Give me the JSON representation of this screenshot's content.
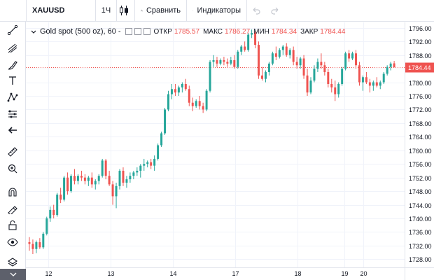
{
  "toolbar": {
    "symbol": "XAUUSD",
    "interval": "1Ч",
    "compare_label": "Сравнить",
    "indicators_label": "Индикаторы"
  },
  "legend": {
    "title": "Gold spot (500 oz), 60",
    "sep": "-",
    "open_label": "ОТКР",
    "open_value": "1785.57",
    "high_label": "МАКС",
    "high_value": "1786.27",
    "low_label": "МИН",
    "low_value": "1784.34",
    "close_label": "ЗАКР",
    "close_value": "1784.44"
  },
  "left_tools": [
    "crosshair-icon",
    "trend-line-icon",
    "pitchfork-icon",
    "brush-icon",
    "text-icon",
    "pattern-icon",
    "prediction-icon",
    "back-arrow-icon",
    "ruler-icon",
    "zoom-in-icon",
    "magnet-icon",
    "lock-drawing-icon",
    "lock-icon",
    "eye-icon",
    "layers-icon"
  ],
  "colors": {
    "up": "#26a69a",
    "down": "#ef5350",
    "grid": "#f0f3fa",
    "price_line": "#ef5350"
  },
  "chart_data": {
    "type": "candlestick",
    "y_ticks": [
      1728,
      1732,
      1736,
      1740,
      1744,
      1748,
      1752,
      1756,
      1760,
      1764,
      1768,
      1772,
      1776,
      1780,
      1784,
      1788,
      1792,
      1796
    ],
    "ylim": [
      1725.6,
      1797.6
    ],
    "x_ticks": [
      "12",
      "13",
      "14",
      "17",
      "18",
      "19",
      "20"
    ],
    "last_price": 1784.44,
    "last_price_label": "1784.44",
    "candles": [
      [
        1733.0,
        1734.5,
        1730.5,
        1732.5
      ],
      [
        1732.5,
        1733.8,
        1729.5,
        1731.0
      ],
      [
        1731.0,
        1733.5,
        1729.8,
        1733.0
      ],
      [
        1733.0,
        1734.2,
        1731.0,
        1731.5
      ],
      [
        1731.5,
        1736.0,
        1731.0,
        1735.5
      ],
      [
        1735.5,
        1740.5,
        1735.0,
        1740.0
      ],
      [
        1740.0,
        1743.5,
        1739.0,
        1742.5
      ],
      [
        1742.5,
        1744.0,
        1740.0,
        1741.0
      ],
      [
        1741.0,
        1747.5,
        1740.5,
        1747.0
      ],
      [
        1747.0,
        1749.0,
        1744.5,
        1745.5
      ],
      [
        1745.5,
        1752.5,
        1745.0,
        1752.0
      ],
      [
        1752.0,
        1753.5,
        1747.0,
        1748.0
      ],
      [
        1748.0,
        1753.0,
        1747.5,
        1752.5
      ],
      [
        1752.5,
        1754.5,
        1750.0,
        1751.0
      ],
      [
        1751.0,
        1753.0,
        1750.0,
        1752.5
      ],
      [
        1752.5,
        1754.0,
        1751.0,
        1752.0
      ],
      [
        1752.0,
        1753.0,
        1750.0,
        1751.0
      ],
      [
        1751.0,
        1752.5,
        1749.5,
        1752.0
      ],
      [
        1752.0,
        1753.5,
        1749.0,
        1750.0
      ],
      [
        1750.0,
        1751.5,
        1748.5,
        1751.0
      ],
      [
        1751.0,
        1753.0,
        1750.0,
        1752.5
      ],
      [
        1752.5,
        1757.5,
        1752.0,
        1757.0
      ],
      [
        1757.0,
        1757.5,
        1751.5,
        1752.5
      ],
      [
        1752.5,
        1754.0,
        1749.5,
        1750.0
      ],
      [
        1750.0,
        1751.0,
        1744.0,
        1746.5
      ],
      [
        1746.5,
        1750.5,
        1743.0,
        1749.5
      ],
      [
        1749.5,
        1754.5,
        1748.5,
        1754.0
      ],
      [
        1754.0,
        1755.0,
        1749.5,
        1750.5
      ],
      [
        1750.5,
        1752.5,
        1749.0,
        1751.5
      ],
      [
        1751.5,
        1753.5,
        1750.5,
        1752.5
      ],
      [
        1752.5,
        1754.0,
        1751.5,
        1753.5
      ],
      [
        1753.5,
        1755.0,
        1752.5,
        1754.0
      ],
      [
        1754.0,
        1756.0,
        1752.0,
        1755.5
      ],
      [
        1755.5,
        1757.5,
        1754.0,
        1756.0
      ],
      [
        1756.0,
        1757.0,
        1755.0,
        1756.5
      ],
      [
        1756.5,
        1757.5,
        1754.5,
        1755.5
      ],
      [
        1755.5,
        1758.5,
        1754.0,
        1757.5
      ],
      [
        1757.5,
        1762.0,
        1757.0,
        1761.5
      ],
      [
        1761.5,
        1765.5,
        1761.0,
        1765.0
      ],
      [
        1765.0,
        1772.5,
        1764.5,
        1772.0
      ],
      [
        1772.0,
        1777.5,
        1771.5,
        1776.5
      ],
      [
        1776.5,
        1779.5,
        1775.0,
        1778.0
      ],
      [
        1778.0,
        1779.5,
        1776.0,
        1777.0
      ],
      [
        1777.0,
        1779.0,
        1776.0,
        1778.5
      ],
      [
        1778.5,
        1780.0,
        1777.0,
        1779.5
      ],
      [
        1779.5,
        1781.0,
        1777.5,
        1778.0
      ],
      [
        1778.0,
        1779.0,
        1773.0,
        1774.0
      ],
      [
        1774.0,
        1775.5,
        1771.5,
        1773.0
      ],
      [
        1773.0,
        1775.0,
        1772.5,
        1774.5
      ],
      [
        1774.5,
        1776.0,
        1772.0,
        1773.0
      ],
      [
        1773.0,
        1774.0,
        1771.0,
        1772.0
      ],
      [
        1772.0,
        1778.0,
        1771.5,
        1777.5
      ],
      [
        1777.5,
        1786.5,
        1777.0,
        1786.0
      ],
      [
        1786.0,
        1788.0,
        1784.5,
        1786.5
      ],
      [
        1786.5,
        1787.5,
        1784.5,
        1785.5
      ],
      [
        1785.5,
        1787.0,
        1785.0,
        1786.5
      ],
      [
        1786.5,
        1787.5,
        1785.0,
        1786.0
      ],
      [
        1786.0,
        1787.0,
        1784.5,
        1785.5
      ],
      [
        1785.5,
        1787.5,
        1785.0,
        1786.5
      ],
      [
        1786.5,
        1788.0,
        1784.0,
        1784.5
      ],
      [
        1784.5,
        1789.5,
        1784.0,
        1789.0
      ],
      [
        1789.0,
        1791.0,
        1788.0,
        1790.5
      ],
      [
        1790.5,
        1792.0,
        1789.0,
        1789.5
      ],
      [
        1789.5,
        1794.5,
        1789.0,
        1794.0
      ],
      [
        1794.0,
        1795.5,
        1793.0,
        1794.5
      ],
      [
        1794.5,
        1795.0,
        1790.0,
        1791.0
      ],
      [
        1791.0,
        1792.0,
        1781.0,
        1782.0
      ],
      [
        1782.0,
        1784.5,
        1780.5,
        1781.0
      ],
      [
        1781.0,
        1783.5,
        1780.0,
        1783.0
      ],
      [
        1783.0,
        1786.0,
        1782.0,
        1785.5
      ],
      [
        1785.5,
        1789.0,
        1785.0,
        1788.5
      ],
      [
        1788.5,
        1790.5,
        1786.5,
        1787.5
      ],
      [
        1787.5,
        1790.0,
        1787.0,
        1789.5
      ],
      [
        1789.5,
        1791.0,
        1788.0,
        1790.5
      ],
      [
        1790.5,
        1791.5,
        1787.5,
        1788.0
      ],
      [
        1788.0,
        1790.0,
        1787.0,
        1789.5
      ],
      [
        1789.5,
        1790.5,
        1785.0,
        1786.0
      ],
      [
        1786.0,
        1787.5,
        1784.0,
        1785.0
      ],
      [
        1785.0,
        1787.5,
        1784.0,
        1787.0
      ],
      [
        1787.0,
        1788.0,
        1781.0,
        1782.0
      ],
      [
        1782.0,
        1784.0,
        1776.0,
        1777.0
      ],
      [
        1777.0,
        1781.5,
        1776.5,
        1780.5
      ],
      [
        1780.5,
        1785.0,
        1780.0,
        1784.0
      ],
      [
        1784.0,
        1787.0,
        1783.0,
        1786.0
      ],
      [
        1786.0,
        1788.5,
        1784.0,
        1785.0
      ],
      [
        1785.0,
        1786.0,
        1782.0,
        1783.0
      ],
      [
        1783.0,
        1784.0,
        1778.5,
        1779.5
      ],
      [
        1779.5,
        1781.0,
        1777.0,
        1778.5
      ],
      [
        1778.5,
        1780.5,
        1774.5,
        1776.5
      ],
      [
        1776.5,
        1780.0,
        1775.5,
        1779.5
      ],
      [
        1779.5,
        1784.5,
        1779.0,
        1784.0
      ],
      [
        1784.0,
        1789.0,
        1783.5,
        1788.5
      ],
      [
        1788.5,
        1789.5,
        1786.0,
        1787.0
      ],
      [
        1787.0,
        1789.0,
        1786.5,
        1788.5
      ],
      [
        1788.5,
        1789.5,
        1784.0,
        1785.0
      ],
      [
        1785.0,
        1786.0,
        1779.0,
        1780.0
      ],
      [
        1780.0,
        1782.0,
        1777.5,
        1781.5
      ],
      [
        1781.5,
        1783.0,
        1779.5,
        1780.0
      ],
      [
        1780.0,
        1781.0,
        1777.0,
        1779.0
      ],
      [
        1779.0,
        1780.5,
        1777.5,
        1780.0
      ],
      [
        1780.0,
        1781.5,
        1778.5,
        1779.0
      ],
      [
        1779.0,
        1780.5,
        1778.0,
        1780.0
      ],
      [
        1780.0,
        1783.0,
        1779.5,
        1782.5
      ],
      [
        1782.5,
        1785.0,
        1782.0,
        1784.5
      ],
      [
        1784.5,
        1786.0,
        1783.5,
        1785.5
      ],
      [
        1785.57,
        1786.27,
        1784.34,
        1784.44
      ]
    ]
  }
}
